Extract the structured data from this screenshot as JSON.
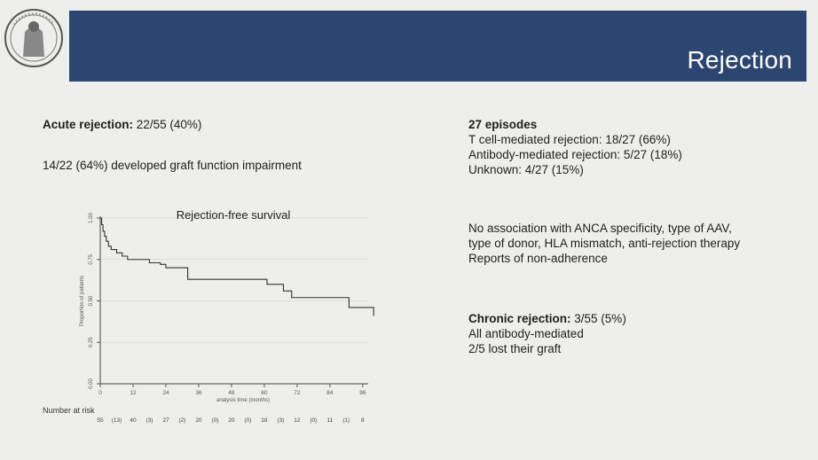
{
  "header": {
    "title": "Rejection"
  },
  "left": {
    "acute_label": "Acute rejection:",
    "acute_value": "22/55 (40%)",
    "impairment": "14/22 (64%) developed graft function impairment"
  },
  "right": {
    "episodes_heading": "27 episodes",
    "episode_lines": [
      "T cell-mediated rejection: 18/27 (66%)",
      "Antibody-mediated rejection: 5/27 (18%)",
      "Unknown: 4/27 (15%)"
    ],
    "association_lines": [
      "No association with ANCA specificity, type of AAV,",
      "type of donor, HLA mismatch, anti-rejection therapy",
      "Reports of non-adherence"
    ],
    "chronic_label": "Chronic rejection:",
    "chronic_value": "3/55 (5%)",
    "chronic_lines": [
      "All antibody-mediated",
      "2/5 lost their graft"
    ]
  },
  "chart_data": {
    "type": "line",
    "title": "Rejection-free survival",
    "xlabel": "analysis time (months)",
    "ylabel": "Proportion of patients",
    "xlim": [
      0,
      98
    ],
    "ylim": [
      0,
      1
    ],
    "xticks": [
      0,
      12,
      24,
      36,
      48,
      60,
      72,
      84,
      96
    ],
    "yticks": [
      "0.00",
      "0.25",
      "0.50",
      "0.75",
      "1.00"
    ],
    "series": [
      {
        "step": [
          [
            0,
            1.0
          ],
          [
            0.5,
            0.96
          ],
          [
            1,
            0.92
          ],
          [
            1.6,
            0.89
          ],
          [
            2.2,
            0.86
          ],
          [
            3,
            0.83
          ],
          [
            4,
            0.81
          ],
          [
            6,
            0.79
          ],
          [
            8,
            0.77
          ],
          [
            10,
            0.75
          ],
          [
            16,
            0.75
          ],
          [
            18,
            0.73
          ],
          [
            20,
            0.73
          ],
          [
            22,
            0.72
          ],
          [
            24,
            0.7
          ],
          [
            31,
            0.7
          ],
          [
            32,
            0.63
          ],
          [
            60,
            0.63
          ],
          [
            61,
            0.6
          ],
          [
            66,
            0.6
          ],
          [
            67,
            0.56
          ],
          [
            69,
            0.56
          ],
          [
            70,
            0.52
          ],
          [
            83,
            0.52
          ],
          [
            90,
            0.52
          ],
          [
            91,
            0.46
          ],
          [
            100,
            0.46
          ],
          [
            100,
            0.41
          ]
        ]
      }
    ],
    "risk_table": {
      "label": "Number at risk",
      "values": [
        "55",
        "(13)",
        "40",
        "(3)",
        "27",
        "(2)",
        "20",
        "(0)",
        "20",
        "(0)",
        "18",
        "(3)",
        "12",
        "(0)",
        "11",
        "(1)",
        "8"
      ]
    }
  }
}
